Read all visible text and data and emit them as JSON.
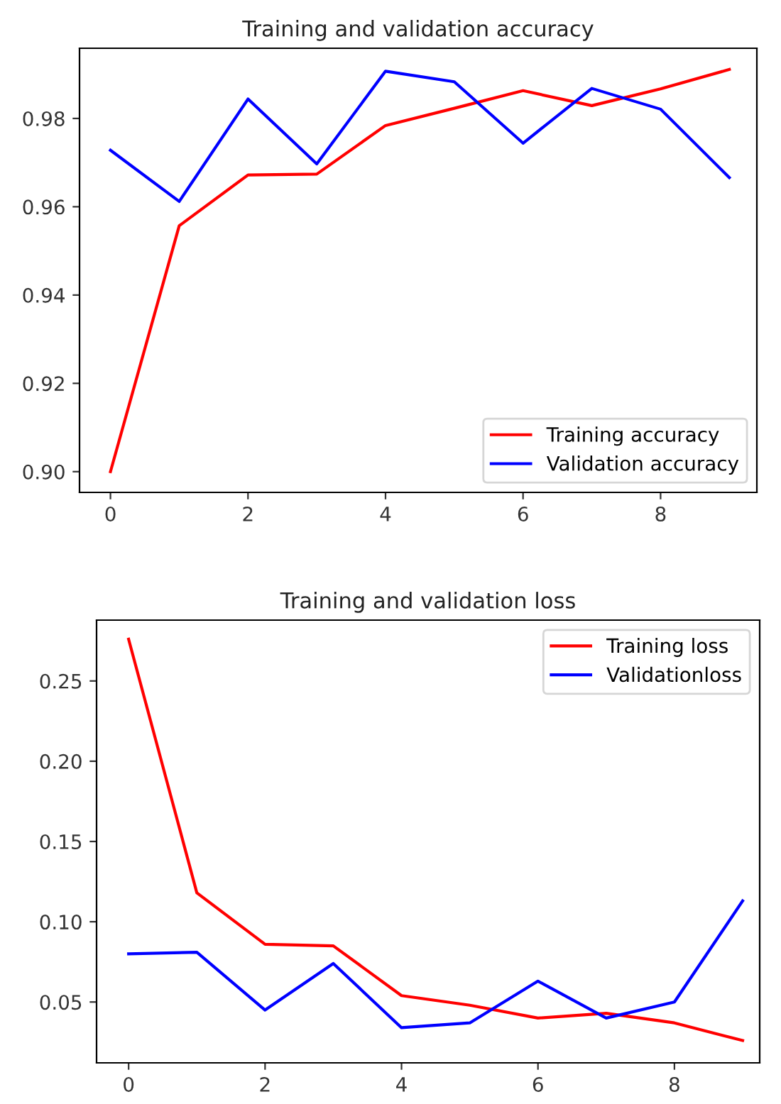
{
  "chart_data": [
    {
      "type": "line",
      "title": "Training and validation accuracy",
      "x": [
        0,
        1,
        2,
        3,
        4,
        5,
        6,
        7,
        8,
        9
      ],
      "series": [
        {
          "name": "Training accuracy",
          "color": "#ff0000",
          "values": [
            0.9,
            0.9557,
            0.9672,
            0.9674,
            0.9784,
            0.9823,
            0.9863,
            0.9829,
            0.9867,
            0.9911
          ]
        },
        {
          "name": "Validation accuracy",
          "color": "#0000ff",
          "values": [
            0.9728,
            0.9612,
            0.9844,
            0.9697,
            0.9907,
            0.9883,
            0.9744,
            0.9868,
            0.9821,
            0.9666
          ]
        }
      ],
      "xlim": [
        -0.45,
        9.4
      ],
      "ylim": [
        0.8953,
        0.9959
      ],
      "xticks": [
        0,
        2,
        4,
        6,
        8
      ],
      "yticks": [
        {
          "value": 0.9,
          "label": "0.90"
        },
        0.92,
        0.94,
        0.96,
        0.98
      ],
      "legend": "bottom right",
      "grid": false
    },
    {
      "type": "line",
      "title": "Training and validation loss",
      "x": [
        0,
        1,
        2,
        3,
        4,
        5,
        6,
        7,
        8,
        9
      ],
      "series": [
        {
          "name": "Training loss",
          "color": "#ff0000",
          "values": [
            0.276,
            0.118,
            0.086,
            0.085,
            0.054,
            0.048,
            0.04,
            0.043,
            0.037,
            0.026
          ]
        },
        {
          "name": "Validationloss",
          "color": "#0000ff",
          "values": [
            0.08,
            0.081,
            0.045,
            0.074,
            0.034,
            0.037,
            0.063,
            0.04,
            0.05,
            0.113
          ]
        }
      ],
      "xlim": [
        -0.47,
        9.25
      ],
      "ylim": [
        0.0121,
        0.2879
      ],
      "xticks": [
        0,
        2,
        4,
        6,
        8
      ],
      "yticks": [
        {
          "value": 0.05,
          "label": "0.05"
        },
        {
          "value": 0.1,
          "label": "0.10"
        },
        {
          "value": 0.15,
          "label": "0.15"
        },
        {
          "value": 0.2,
          "label": "0.20"
        },
        {
          "value": 0.25,
          "label": "0.25"
        }
      ],
      "legend": "top right",
      "grid": false
    }
  ]
}
